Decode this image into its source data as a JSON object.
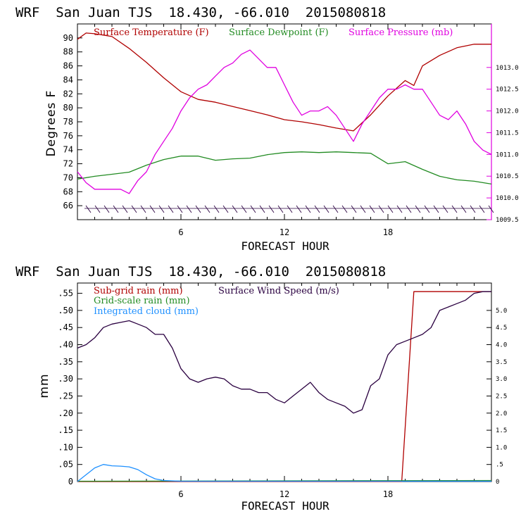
{
  "chart_data": [
    {
      "type": "line",
      "title": "WRF  San Juan TJS  18.430, -66.010  2015080818",
      "xlabel": "FORECAST HOUR",
      "ylabel": "Degrees F",
      "xlim": [
        0,
        24
      ],
      "ylim": [
        64,
        92
      ],
      "xticks": [
        "6",
        "12",
        "18"
      ],
      "yticks_left": [
        "66",
        "68",
        "70",
        "72",
        "74",
        "76",
        "78",
        "80",
        "82",
        "84",
        "86",
        "88",
        "90"
      ],
      "y2lim": [
        1009.5,
        1014.0
      ],
      "yticks_right": [
        "1009.5",
        "1010.0",
        "1010.5",
        "1011.0",
        "1011.5",
        "1012.0",
        "1012.5",
        "1013.0"
      ],
      "series": [
        {
          "name": "Surface Temperature (F)",
          "color": "#b00000",
          "axis": "left",
          "x": [
            0,
            0.5,
            1,
            2,
            3,
            4,
            5,
            6,
            7,
            8,
            9,
            10,
            11,
            12,
            13,
            14,
            15,
            16,
            17,
            18,
            19,
            19.5,
            20,
            21,
            22,
            23,
            24
          ],
          "y": [
            89.8,
            90.7,
            90.6,
            90.2,
            88.5,
            86.5,
            84.3,
            82.3,
            81.2,
            80.8,
            80.2,
            79.6,
            79,
            78.3,
            78,
            77.6,
            77.1,
            76.7,
            79,
            81.7,
            83.9,
            83.2,
            86,
            87.5,
            88.6,
            89.1,
            89.1
          ]
        },
        {
          "name": "Surface Dewpoint (F)",
          "color": "#228b22",
          "axis": "left",
          "x": [
            0,
            1,
            2,
            3,
            4,
            5,
            6,
            7,
            8,
            9,
            10,
            11,
            12,
            13,
            14,
            15,
            16,
            17,
            18,
            19,
            20,
            21,
            22,
            23,
            24
          ],
          "y": [
            69.8,
            70.2,
            70.5,
            70.8,
            71.8,
            72.6,
            73.1,
            73.1,
            72.5,
            72.7,
            72.8,
            73.3,
            73.6,
            73.7,
            73.6,
            73.7,
            73.6,
            73.5,
            72,
            72.3,
            71.2,
            70.2,
            69.7,
            69.5,
            69.1
          ]
        },
        {
          "name": "Surface Pressure (mb)",
          "color": "#e000e0",
          "axis": "right",
          "x": [
            0,
            0.5,
            1,
            1.5,
            2,
            2.5,
            3,
            3.5,
            4,
            4.5,
            5,
            5.5,
            6,
            6.5,
            7,
            7.5,
            8,
            8.5,
            9,
            9.5,
            10,
            10.5,
            11,
            11.5,
            12,
            12.5,
            13,
            13.5,
            14,
            14.5,
            15,
            15.5,
            16,
            16.5,
            17,
            17.5,
            18,
            18.5,
            19,
            19.5,
            20,
            20.5,
            21,
            21.5,
            22,
            22.5,
            23,
            23.5,
            24
          ],
          "y": [
            1010.6,
            1010.35,
            1010.2,
            1010.2,
            1010.2,
            1010.2,
            1010.1,
            1010.4,
            1010.6,
            1011.0,
            1011.3,
            1011.6,
            1012.0,
            1012.3,
            1012.5,
            1012.6,
            1012.8,
            1013.0,
            1013.1,
            1013.3,
            1013.4,
            1013.2,
            1013.0,
            1013.0,
            1012.6,
            1012.2,
            1011.9,
            1012.0,
            1012.0,
            1012.1,
            1011.9,
            1011.6,
            1011.3,
            1011.7,
            1012.0,
            1012.3,
            1012.5,
            1012.5,
            1012.6,
            1012.5,
            1012.5,
            1012.2,
            1011.9,
            1011.8,
            1012.0,
            1011.7,
            1011.3,
            1011.1,
            1011.0
          ]
        }
      ]
    },
    {
      "type": "line",
      "title": "WRF  San Juan TJS  18.430, -66.010  2015080818",
      "xlabel": "FORECAST HOUR",
      "ylabel": "mm",
      "xlim": [
        0,
        24
      ],
      "ylim": [
        0,
        0.58
      ],
      "xticks": [
        "6",
        "12",
        "18"
      ],
      "yticks_left": [
        "0",
        ".05",
        ".10",
        ".15",
        ".20",
        ".25",
        ".30",
        ".35",
        ".40",
        ".45",
        ".50",
        ".55"
      ],
      "y2lim": [
        0,
        5.8
      ],
      "yticks_right": [
        "0",
        ".5",
        "1.0",
        "1.5",
        "2.0",
        "2.5",
        "3.0",
        "3.5",
        "4.0",
        "4.5",
        "5.0"
      ],
      "series": [
        {
          "name": "Sub-grid rain (mm)",
          "color": "#b00000",
          "axis": "left",
          "x": [
            0,
            18.8,
            19.5,
            24
          ],
          "y": [
            0,
            0,
            0.555,
            0.555
          ]
        },
        {
          "name": "Grid-scale rain (mm)",
          "color": "#228b22",
          "axis": "left",
          "x": [
            0,
            24
          ],
          "y": [
            0.001,
            0.003
          ]
        },
        {
          "name": "Integrated cloud (mm)",
          "color": "#1e90ff",
          "axis": "left",
          "x": [
            0,
            0.5,
            1,
            1.5,
            2,
            2.5,
            3,
            3.5,
            4,
            4.5,
            5,
            6,
            24
          ],
          "y": [
            0,
            0.02,
            0.04,
            0.05,
            0.046,
            0.045,
            0.043,
            0.035,
            0.02,
            0.008,
            0.003,
            0.001,
            0.001
          ]
        },
        {
          "name": "Surface Wind Speed (m/s)",
          "color": "#2a0040",
          "axis": "right",
          "x": [
            0,
            0.5,
            1,
            1.5,
            2,
            2.5,
            3,
            3.5,
            4,
            4.5,
            5,
            5.5,
            6,
            6.5,
            7,
            7.5,
            8,
            8.5,
            9,
            9.5,
            10,
            10.5,
            11,
            11.5,
            12,
            12.5,
            13,
            13.5,
            14,
            14.5,
            15,
            15.5,
            16,
            16.5,
            17,
            17.5,
            18,
            18.5,
            19,
            19.5,
            20,
            20.5,
            21,
            21.5,
            22,
            22.5,
            23,
            23.5,
            24
          ],
          "y": [
            3.9,
            4.0,
            4.2,
            4.5,
            4.6,
            4.65,
            4.7,
            4.6,
            4.5,
            4.3,
            4.3,
            3.9,
            3.3,
            3.0,
            2.9,
            3.0,
            3.05,
            3.0,
            2.8,
            2.7,
            2.7,
            2.6,
            2.6,
            2.4,
            2.3,
            2.5,
            2.7,
            2.9,
            2.6,
            2.4,
            2.3,
            2.2,
            2.0,
            2.1,
            2.8,
            3.0,
            3.7,
            4.0,
            4.1,
            4.2,
            4.3,
            4.5,
            5.0,
            5.1,
            5.2,
            5.3,
            5.5,
            5.55,
            5.55
          ]
        }
      ]
    }
  ]
}
